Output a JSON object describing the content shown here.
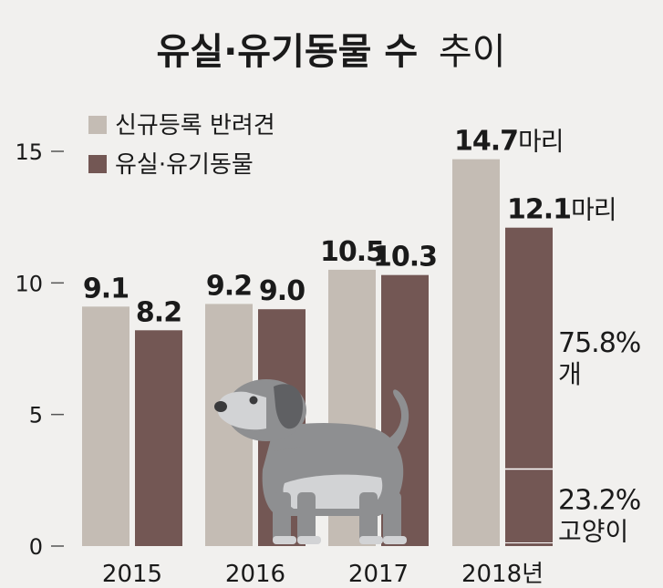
{
  "chart_data": {
    "type": "bar",
    "title_bold": "유실·유기동물 수",
    "title_light": "추이",
    "categories": [
      "2015",
      "2016",
      "2017",
      "2018년"
    ],
    "series": [
      {
        "name": "신규등록 반려견",
        "values": [
          9.1,
          9.2,
          10.5,
          14.7
        ],
        "labels": [
          "9.1",
          "9.2",
          "10.5",
          "14.7"
        ],
        "color": "#c4bcb4"
      },
      {
        "name": "유실·유기동물",
        "values": [
          8.2,
          9.0,
          10.3,
          12.1
        ],
        "labels": [
          "8.2",
          "9.0",
          "10.3",
          "12.1"
        ],
        "color": "#735754"
      }
    ],
    "unit_suffix": "마리",
    "yticks": [
      "0",
      "5",
      "10",
      "15"
    ],
    "ylim": [
      0,
      15
    ],
    "breakdown": [
      {
        "share": 75.8,
        "label_value": "75.8%",
        "label_text": "개"
      },
      {
        "share": 23.2,
        "label_value": "23.2%",
        "label_text": "고양이"
      }
    ],
    "grid": false,
    "legend": "top-left",
    "illustration": "dog-icon",
    "colors": {
      "background": "#f1f0ee",
      "text": "#1a1a1a",
      "dog_body": "#8e8f91",
      "dog_light": "#d2d3d5"
    }
  }
}
